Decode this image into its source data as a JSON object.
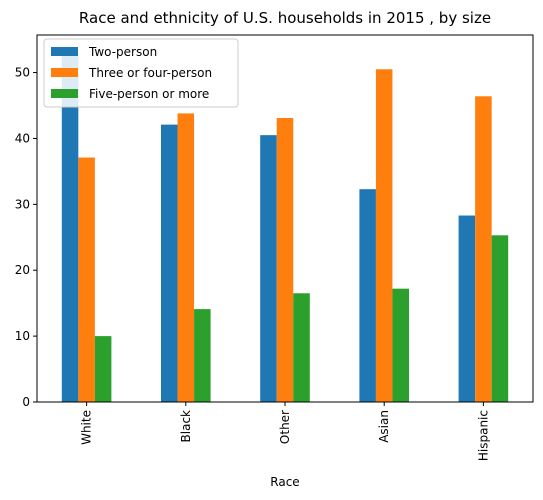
{
  "chart_data": {
    "type": "bar",
    "title": "Race and ethnicity of U.S. households in 2015 , by size",
    "xlabel": "Race",
    "ylabel": "",
    "categories": [
      "White",
      "Black",
      "Other",
      "Asian",
      "Hispanic"
    ],
    "series": [
      {
        "name": "Two-person",
        "values": [
          53.0,
          42.1,
          40.5,
          32.3,
          28.3
        ],
        "color": "#1f77b4"
      },
      {
        "name": "Three or four-person",
        "values": [
          37.1,
          43.8,
          43.1,
          50.5,
          46.4
        ],
        "color": "#ff7f0e"
      },
      {
        "name": "Five-person or more",
        "values": [
          10.0,
          14.1,
          16.5,
          17.2,
          25.3
        ],
        "color": "#2ca02c"
      }
    ],
    "ylim": [
      0,
      55.7
    ],
    "yticks": [
      0,
      10,
      20,
      30,
      40,
      50
    ],
    "grid": false,
    "legend_position": "top-left"
  }
}
